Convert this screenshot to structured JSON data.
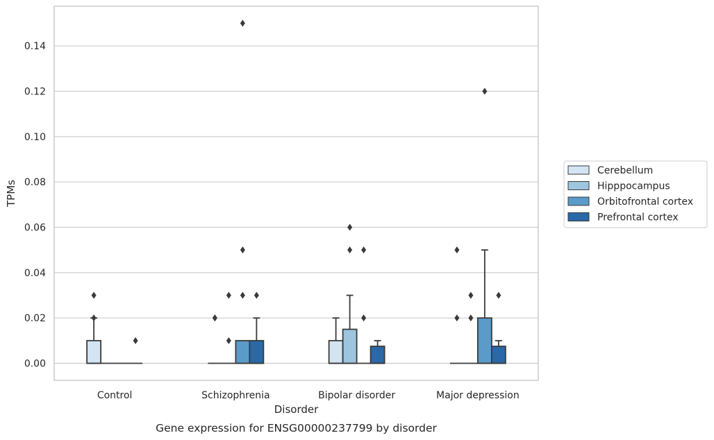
{
  "chart_data": {
    "type": "boxplot",
    "title": "Gene expression for ENSG00000237799 by disorder",
    "xlabel": "Disorder",
    "ylabel": "TPMs",
    "ylim": [
      -0.0075,
      0.1575
    ],
    "yticks": [
      0.0,
      0.02,
      0.04,
      0.06,
      0.08,
      0.1,
      0.12,
      0.14
    ],
    "ytick_labels": [
      "0.00",
      "0.02",
      "0.04",
      "0.06",
      "0.08",
      "0.10",
      "0.12",
      "0.14"
    ],
    "grid": "horizontal",
    "legend_position": "right",
    "categories": [
      "Control",
      "Schizophrenia",
      "Bipolar disorder",
      "Major depression"
    ],
    "series": [
      {
        "name": "Cerebellum",
        "color": "#d3e4f3",
        "boxes": [
          {
            "q1": 0.0,
            "median": 0.0,
            "q3": 0.01,
            "whisker_low": 0.0,
            "whisker_high": 0.02,
            "outliers": [
              0.03,
              0.02
            ]
          },
          {
            "q1": 0.0,
            "median": 0.0,
            "q3": 0.0,
            "whisker_low": 0.0,
            "whisker_high": 0.0,
            "outliers": [
              0.02,
              0.02
            ]
          },
          {
            "q1": 0.0,
            "median": 0.0,
            "q3": 0.01,
            "whisker_low": 0.0,
            "whisker_high": 0.02,
            "outliers": []
          },
          {
            "q1": 0.0,
            "median": 0.0,
            "q3": 0.0,
            "whisker_low": 0.0,
            "whisker_high": 0.0,
            "outliers": [
              0.05,
              0.02
            ]
          }
        ]
      },
      {
        "name": "Hipppocampus",
        "color": "#9dc5de",
        "boxes": [
          {
            "q1": 0.0,
            "median": 0.0,
            "q3": 0.0,
            "whisker_low": 0.0,
            "whisker_high": 0.0,
            "outliers": []
          },
          {
            "q1": 0.0,
            "median": 0.0,
            "q3": 0.0,
            "whisker_low": 0.0,
            "whisker_high": 0.0,
            "outliers": [
              0.03,
              0.01
            ]
          },
          {
            "q1": 0.0,
            "median": 0.0,
            "q3": 0.015,
            "whisker_low": 0.0,
            "whisker_high": 0.03,
            "outliers": [
              0.06,
              0.05
            ]
          },
          {
            "q1": 0.0,
            "median": 0.0,
            "q3": 0.0,
            "whisker_low": 0.0,
            "whisker_high": 0.0,
            "outliers": [
              0.03,
              0.02
            ]
          }
        ]
      },
      {
        "name": "Orbitofrontal cortex",
        "color": "#5a9bc9",
        "boxes": [
          {
            "q1": 0.0,
            "median": 0.0,
            "q3": 0.0,
            "whisker_low": 0.0,
            "whisker_high": 0.0,
            "outliers": []
          },
          {
            "q1": 0.0,
            "median": 0.0,
            "q3": 0.01,
            "whisker_low": 0.0,
            "whisker_high": 0.01,
            "outliers": [
              0.15,
              0.05,
              0.03
            ]
          },
          {
            "q1": 0.0,
            "median": 0.0,
            "q3": 0.0,
            "whisker_low": 0.0,
            "whisker_high": 0.0,
            "outliers": [
              0.05,
              0.02
            ]
          },
          {
            "q1": 0.0,
            "median": 0.0,
            "q3": 0.02,
            "whisker_low": 0.0,
            "whisker_high": 0.05,
            "outliers": [
              0.12
            ]
          }
        ]
      },
      {
        "name": "Prefrontal cortex",
        "color": "#2a68a8",
        "boxes": [
          {
            "q1": 0.0,
            "median": 0.0,
            "q3": 0.0,
            "whisker_low": 0.0,
            "whisker_high": 0.0,
            "outliers": [
              0.01
            ]
          },
          {
            "q1": 0.0,
            "median": 0.0,
            "q3": 0.01,
            "whisker_low": 0.0,
            "whisker_high": 0.02,
            "outliers": [
              0.03
            ]
          },
          {
            "q1": 0.0,
            "median": 0.0,
            "q3": 0.0075,
            "whisker_low": 0.0,
            "whisker_high": 0.01,
            "outliers": []
          },
          {
            "q1": 0.0,
            "median": 0.0,
            "q3": 0.0075,
            "whisker_low": 0.0,
            "whisker_high": 0.01,
            "outliers": [
              0.03
            ]
          }
        ]
      }
    ]
  }
}
